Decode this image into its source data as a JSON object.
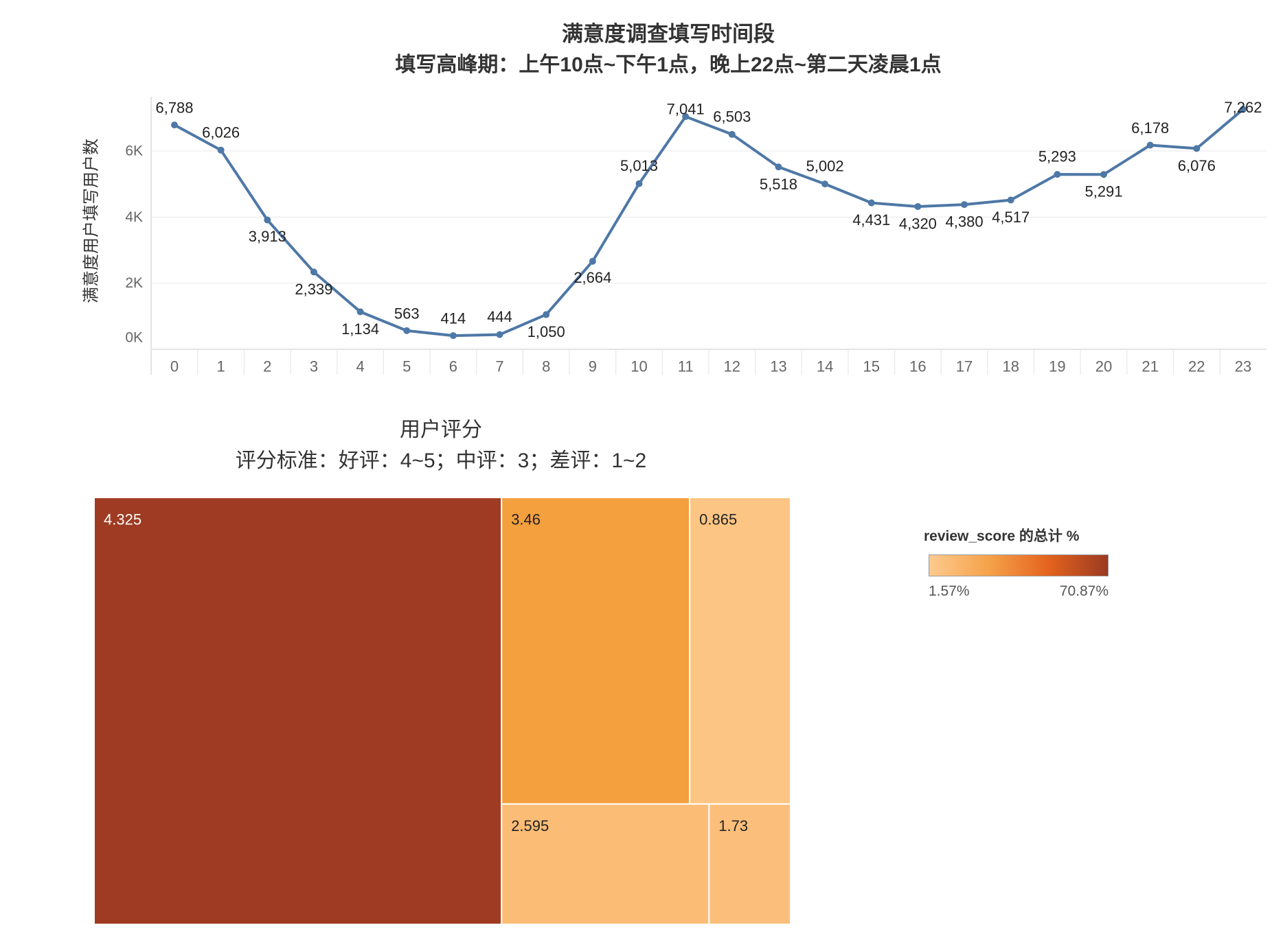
{
  "chart_data": [
    {
      "type": "line",
      "title": "满意度调查填写时间段",
      "subtitle": "填写高峰期：上午10点~下午1点，晚上22点~第二天凌晨1点",
      "ylabel": "满意度用户填写用户数",
      "categories": [
        "0",
        "1",
        "2",
        "3",
        "4",
        "5",
        "6",
        "7",
        "8",
        "9",
        "10",
        "11",
        "12",
        "13",
        "14",
        "15",
        "16",
        "17",
        "18",
        "19",
        "20",
        "21",
        "22",
        "23"
      ],
      "values": [
        6788,
        6026,
        3913,
        2339,
        1134,
        563,
        414,
        444,
        1050,
        2664,
        5013,
        7041,
        6503,
        5518,
        5002,
        4431,
        4320,
        4380,
        4517,
        5293,
        5291,
        6178,
        6076,
        7262
      ],
      "ylim": [
        0,
        7600
      ],
      "yticks": [
        {
          "value": 0,
          "label": "0K"
        },
        {
          "value": 2000,
          "label": "2K"
        },
        {
          "value": 4000,
          "label": "4K"
        },
        {
          "value": 6000,
          "label": "6K"
        }
      ],
      "grid": true,
      "line_color": "#4e78a6"
    },
    {
      "type": "treemap",
      "title": "用户评分",
      "subtitle": "评分标准：好评：4~5；中评：3；差评：1~2",
      "items": [
        {
          "label": "4.325",
          "share": 58.5,
          "color": "#9e3b22"
        },
        {
          "label": "3.46",
          "share": 19.4,
          "color": "#f4a03e"
        },
        {
          "label": "0.865",
          "share": 10.4,
          "color": "#fdc583"
        },
        {
          "label": "2.595",
          "share": 8.4,
          "color": "#fbbd76"
        },
        {
          "label": "1.73",
          "share": 3.3,
          "color": "#fcbf7b"
        }
      ],
      "legend": {
        "title": "review_score 的总计 %",
        "min_label": "1.57%",
        "max_label": "70.87%",
        "gradient": [
          "#fdca8e",
          "#f5a24a",
          "#e4631e",
          "#9b3a22"
        ]
      }
    }
  ]
}
